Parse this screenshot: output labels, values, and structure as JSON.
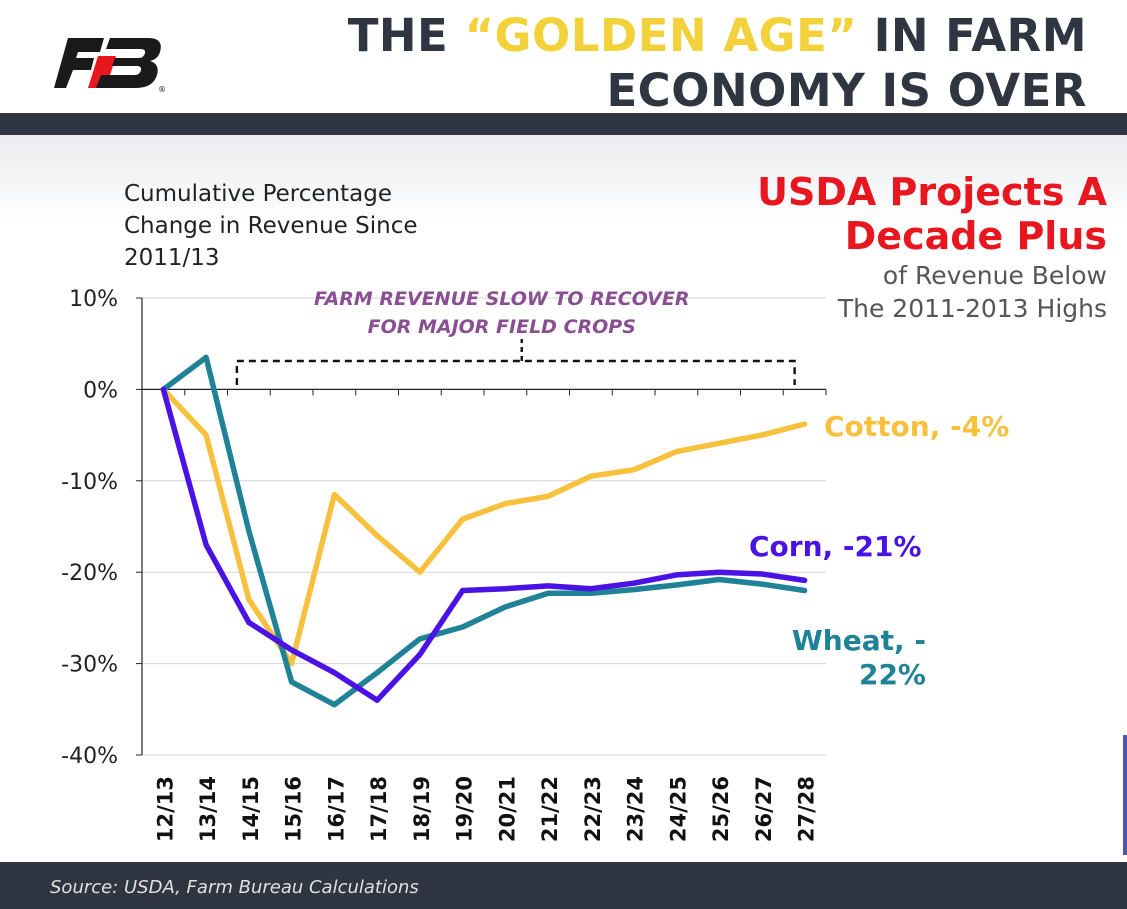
{
  "header": {
    "title_part1": "THE ",
    "title_highlight": "“GOLDEN AGE”",
    "title_part2": " IN FARM",
    "title_line2": "ECONOMY IS OVER"
  },
  "callout": {
    "headline_line1": "USDA Projects A",
    "headline_line2": "Decade Plus",
    "sub_line1": "of Revenue Below",
    "sub_line2": "The 2011-2013 Highs"
  },
  "footer": {
    "source": "Source: USDA, Farm Bureau Calculations"
  },
  "colors": {
    "corn": "#4b12e6",
    "cotton": "#f7c13e",
    "wheat": "#1f8296",
    "brand_red": "#e8161f",
    "dark": "#2f3541",
    "highlight": "#f2d13a",
    "annotation": "#8a4f92"
  },
  "chart_data": {
    "type": "line",
    "title": "",
    "ylabel": "Cumulative Percentage Change in Revenue Since 2011/13",
    "xlabel": "",
    "ylim": [
      -40,
      10
    ],
    "yticks": [
      "10%",
      "0%",
      "-10%",
      "-20%",
      "-30%",
      "-40%"
    ],
    "ytick_values": [
      10,
      0,
      -10,
      -20,
      -30,
      -40
    ],
    "categories": [
      "12/13",
      "13/14",
      "14/15",
      "15/16",
      "16/17",
      "17/18",
      "18/19",
      "19/20",
      "20/21",
      "21/22",
      "22/23",
      "23/24",
      "24/25",
      "25/26",
      "26/27",
      "27/28"
    ],
    "series": [
      {
        "name": "Corn",
        "label": "Corn, -21%",
        "color_key": "corn",
        "values": [
          0,
          -17,
          -25.5,
          -28.5,
          -31,
          -34,
          -29,
          -22,
          -21.8,
          -21.5,
          -21.8,
          -21.2,
          -20.3,
          -20,
          -20.2,
          -20.9
        ]
      },
      {
        "name": "Cotton",
        "label": "Cotton, -4%",
        "color_key": "cotton",
        "values": [
          0,
          -5,
          -23,
          -30,
          -11.5,
          -16,
          -20,
          -14.2,
          -12.5,
          -11.7,
          -9.5,
          -8.8,
          -6.8,
          -5.9,
          -5,
          -3.8
        ]
      },
      {
        "name": "Wheat",
        "label_line1": "Wheat, -",
        "label_line2": "22%",
        "color_key": "wheat",
        "values": [
          0,
          3.5,
          -15.5,
          -32,
          -34.5,
          -31,
          -27.3,
          -26,
          -23.8,
          -22.3,
          -22.3,
          -21.9,
          -21.4,
          -20.8,
          -21.3,
          -22
        ]
      }
    ],
    "annotation": {
      "line1": "FARM REVENUE SLOW TO RECOVER",
      "line2": "FOR MAJOR FIELD CROPS",
      "bracket_from": "14/15",
      "bracket_to": "27/28"
    },
    "grid": true
  }
}
